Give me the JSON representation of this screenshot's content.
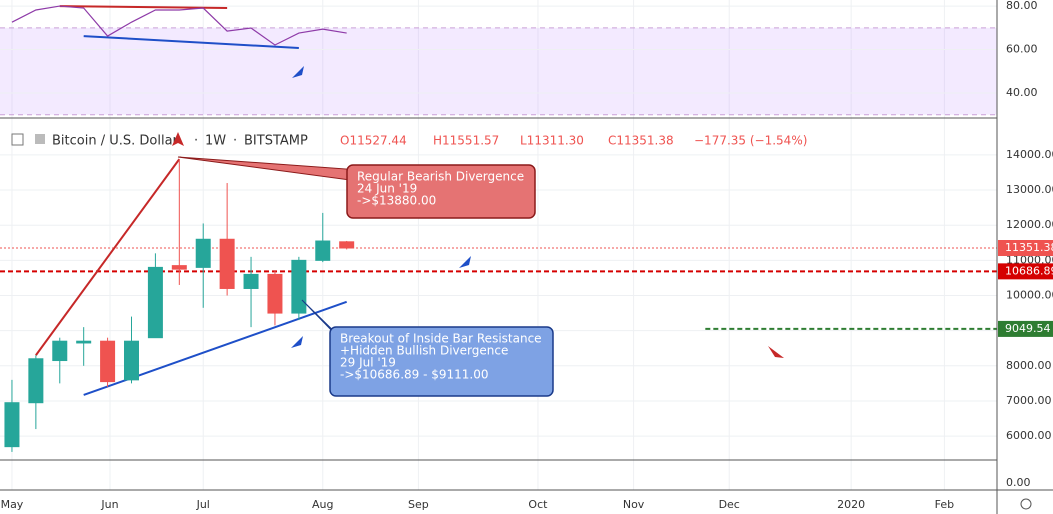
{
  "header": {
    "symbol": "Bitcoin / U.S. Dollar",
    "interval": "1W",
    "exchange": "BITSTAMP",
    "open": "O11527.44",
    "high": "H11551.57",
    "low": "L11311.30",
    "close": "C11351.38",
    "change": "−177.35 (−1.54%)"
  },
  "chart_data": [
    {
      "type": "candlestick",
      "up_color": "#26a69a",
      "down_color": "#ef5350",
      "x": [
        0,
        1,
        2,
        3,
        4,
        5,
        6,
        7,
        8,
        9,
        10,
        11,
        12,
        13,
        14
      ],
      "open": [
        5700,
        6950,
        8150,
        8650,
        8700,
        7600,
        8800,
        10850,
        10800,
        11600,
        10200,
        10600,
        9500,
        11000,
        11527.44
      ],
      "high": [
        7600,
        8300,
        8800,
        9100,
        8800,
        9400,
        11200,
        13880,
        12050,
        13200,
        11100,
        10700,
        11100,
        12350,
        11551.57
      ],
      "low": [
        5550,
        6200,
        7500,
        8000,
        7400,
        7500,
        8800,
        10300,
        9650,
        10000,
        9100,
        9150,
        9300,
        10950,
        11311.3
      ],
      "close": [
        6950,
        8200,
        8700,
        8700,
        7550,
        8700,
        10800,
        10750,
        11600,
        10200,
        10600,
        9500,
        11000,
        11550,
        11351.38
      ],
      "xlim": [
        -0.5,
        41.2
      ],
      "xticks": [
        {
          "value": 0,
          "label": "May"
        },
        {
          "value": 4.1,
          "label": "Jun"
        },
        {
          "value": 8,
          "label": "Jul"
        },
        {
          "value": 13,
          "label": "Aug"
        },
        {
          "value": 17,
          "label": "Sep"
        },
        {
          "value": 22,
          "label": "Oct"
        },
        {
          "value": 26,
          "label": "Nov"
        },
        {
          "value": 30,
          "label": "Dec"
        },
        {
          "value": 35.1,
          "label": "2020"
        },
        {
          "value": 39,
          "label": "Feb"
        }
      ],
      "ylim": [
        5320,
        15050
      ],
      "yticks": [
        {
          "value": 6000,
          "label": "6000.00"
        },
        {
          "value": 7000,
          "label": "7000.00"
        },
        {
          "value": 8000,
          "label": "8000.00"
        },
        {
          "value": 9000,
          "label": "9000.00"
        },
        {
          "value": 10000,
          "label": "10000.00"
        },
        {
          "value": 11000,
          "label": "11000.00"
        },
        {
          "value": 12000,
          "label": "12000.00"
        },
        {
          "value": 13000,
          "label": "13000.00"
        },
        {
          "value": 14000,
          "label": "14000.00"
        }
      ],
      "grid": true,
      "price_lines": [
        {
          "value": 11351.38,
          "color": "#ef5350",
          "style": "dotted"
        },
        {
          "value": 10686.89,
          "color": "#d50000",
          "style": "dashed"
        },
        {
          "value": 9049.54,
          "color": "#2e7d32",
          "style": "dashed",
          "from": 29
        }
      ],
      "trend_lines": [
        {
          "color": "#c62828",
          "points": [
            [
              1,
              8300
            ],
            [
              7,
              13880
            ]
          ]
        },
        {
          "color": "#1e4fc8",
          "points": [
            [
              3,
              7170
            ],
            [
              14,
              9820
            ]
          ]
        }
      ],
      "annotations": [
        {
          "lines": [
            "Regular Bearish Divergence",
            "24 Jun '19",
            "->$13880.00"
          ],
          "color": "#e57373"
        },
        {
          "lines": [
            "Breakout of Inside Bar Resistance",
            "+Hidden Bullish Divergence",
            "29 Jul '19",
            "->$10686.89 - $9111.00"
          ],
          "color": "#7ea2e4"
        }
      ]
    },
    {
      "type": "line",
      "name": "RSI",
      "color": "#8e3ba8",
      "x": [
        0,
        1,
        2,
        3,
        4,
        5,
        6,
        7,
        8,
        9,
        10,
        11,
        12,
        13,
        14
      ],
      "values": [
        72.6,
        78.2,
        80,
        79.1,
        66.2,
        72.6,
        78.2,
        78.2,
        79.1,
        68.5,
        69.9,
        62.1,
        67.6,
        69.4,
        67.6
      ],
      "ylim": [
        28.5,
        82.8
      ],
      "yticks": [
        {
          "value": 40,
          "label": "40.00"
        },
        {
          "value": 60,
          "label": "60.00"
        },
        {
          "value": 80,
          "label": "80.00"
        }
      ],
      "bands": [
        30,
        70
      ],
      "trend_lines": [
        {
          "color": "#c62828",
          "points": [
            [
              2,
              80
            ],
            [
              9,
              79.1
            ]
          ]
        },
        {
          "color": "#1e4fc8",
          "points": [
            [
              3,
              66.2
            ],
            [
              12,
              60.7
            ]
          ]
        }
      ]
    },
    {
      "type": "volume",
      "yticks": [
        {
          "value": 0,
          "label": "0.00"
        }
      ]
    }
  ]
}
